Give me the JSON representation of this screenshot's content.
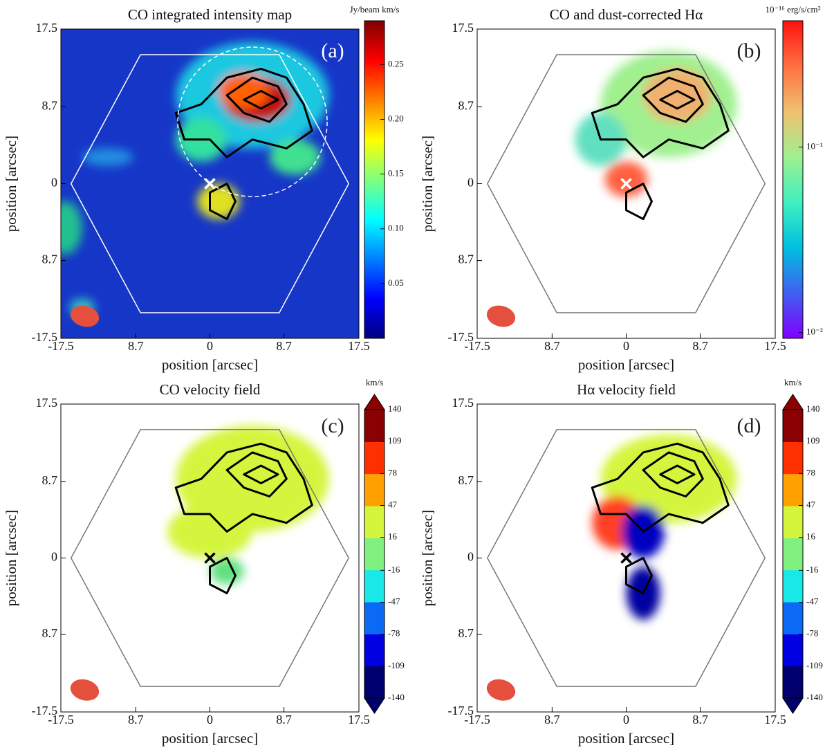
{
  "chart_data": [
    {
      "type": "image",
      "title": "CO integrated intensity map",
      "label": "(a)",
      "xlabel": "position [arcsec]",
      "ylabel": "position [arcsec]",
      "xlim": [
        -17.5,
        17.5
      ],
      "ylim": [
        -17.5,
        17.5
      ],
      "xticks": [
        -17.5,
        {
          "value": -8.7,
          "label": "8.7"
        },
        0,
        8.7,
        17.5
      ],
      "yticks": [
        17.5,
        8.7,
        0,
        {
          "value": -8.7,
          "label": "8.7"
        },
        -17.5
      ],
      "colorbar": {
        "label": "Jy/beam km/s",
        "lim": [
          0,
          0.29
        ],
        "log": false,
        "ticks": [
          0.05,
          {
            "value": 0.1,
            "label": "0.10"
          },
          0.15,
          {
            "value": 0.2,
            "label": "0.20"
          },
          0.25
        ],
        "colors": [
          "#00007f",
          "#0000ff",
          "#007fff",
          "#00ffff",
          "#7fff7f",
          "#ffff00",
          "#ff7f00",
          "#ff0000",
          "#7f0000"
        ]
      }
    },
    {
      "type": "image",
      "title": "CO and dust-corrected Hα",
      "label": "(b)",
      "xlabel": "position [arcsec]",
      "ylabel": "position [arcsec]",
      "xlim": [
        -17.5,
        17.5
      ],
      "ylim": [
        -17.5,
        17.5
      ],
      "xticks": [
        -17.5,
        {
          "value": -8.7,
          "label": "8.7"
        },
        0,
        8.7,
        17.5
      ],
      "yticks": [
        17.5,
        8.7,
        0,
        {
          "value": -8.7,
          "label": "8.7"
        },
        -17.5
      ],
      "colorbar": {
        "label": "10⁻¹⁶ erg/s/cm²",
        "lim": [
          0.0093,
          0.48
        ],
        "log": true,
        "ticks": [
          {
            "value": 0.01,
            "label": "10⁻²"
          },
          {
            "value": 0.1,
            "label": "10⁻¹"
          }
        ],
        "colors": [
          "#8000ff",
          "#4060f0",
          "#00c0e0",
          "#40f0c0",
          "#a0f090",
          "#f0c070",
          "#ff7040",
          "#ff1010"
        ]
      }
    },
    {
      "type": "image",
      "title": "CO velocity field",
      "label": "(c)",
      "xlabel": "position [arcsec]",
      "ylabel": "position [arcsec]",
      "xlim": [
        -17.5,
        17.5
      ],
      "ylim": [
        -17.5,
        17.5
      ],
      "xticks": [
        -17.5,
        {
          "value": -8.7,
          "label": "8.7"
        },
        0,
        8.7,
        17.5
      ],
      "yticks": [
        17.5,
        8.7,
        0,
        {
          "value": -8.7,
          "label": "8.7"
        },
        -17.5
      ],
      "colorbar": {
        "label": "km/s",
        "lim": [
          -140,
          140
        ],
        "log": false,
        "discrete": true,
        "ticks": [
          -140,
          -109,
          -78,
          -47,
          -16,
          16,
          47,
          78,
          109,
          140
        ],
        "colors": [
          "#00006e",
          "#0000e0",
          "#0a6af5",
          "#18e8e8",
          "#80f080",
          "#d4f53c",
          "#ffa000",
          "#ff3000",
          "#8b0000"
        ]
      }
    },
    {
      "type": "image",
      "title": "Hα velocity field",
      "label": "(d)",
      "xlabel": "position [arcsec]",
      "ylabel": "position [arcsec]",
      "xlim": [
        -17.5,
        17.5
      ],
      "ylim": [
        -17.5,
        17.5
      ],
      "xticks": [
        -17.5,
        {
          "value": -8.7,
          "label": "8.7"
        },
        0,
        8.7,
        17.5
      ],
      "yticks": [
        17.5,
        8.7,
        0,
        {
          "value": -8.7,
          "label": "8.7"
        },
        -17.5
      ],
      "colorbar": {
        "label": "km/s",
        "lim": [
          -140,
          140
        ],
        "log": false,
        "discrete": true,
        "ticks": [
          -140,
          -109,
          -78,
          -47,
          -16,
          16,
          47,
          78,
          109,
          140
        ],
        "colors": [
          "#00006e",
          "#0000e0",
          "#0a6af5",
          "#18e8e8",
          "#80f080",
          "#d4f53c",
          "#ffa000",
          "#ff3000",
          "#8b0000"
        ]
      }
    }
  ]
}
